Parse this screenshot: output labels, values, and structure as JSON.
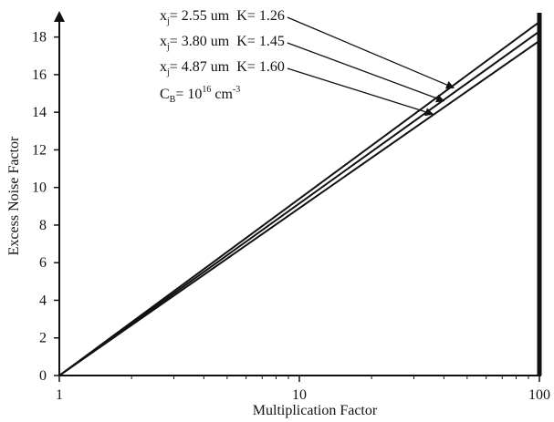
{
  "chart_data": {
    "type": "line",
    "xlabel": "Multiplication Factor",
    "ylabel": "Excess Noise Factor",
    "x_scale": "log",
    "xlim": [
      1,
      100
    ],
    "ylim": [
      0,
      19
    ],
    "x_ticks": [
      {
        "value": 1,
        "label": "1"
      },
      {
        "value": 10,
        "label": "10"
      },
      {
        "value": 100,
        "label": "100"
      }
    ],
    "y_ticks": [
      {
        "value": 0,
        "label": "0"
      },
      {
        "value": 2,
        "label": "2"
      },
      {
        "value": 4,
        "label": "4"
      },
      {
        "value": 6,
        "label": "6"
      },
      {
        "value": 8,
        "label": "8"
      },
      {
        "value": 10,
        "label": "10"
      },
      {
        "value": 12,
        "label": "12"
      },
      {
        "value": 14,
        "label": "14"
      },
      {
        "value": 16,
        "label": "16"
      },
      {
        "value": 18,
        "label": "18"
      }
    ],
    "series": [
      {
        "x": [
          1,
          100
        ],
        "y": [
          0,
          18.8
        ]
      },
      {
        "x": [
          1,
          100
        ],
        "y": [
          0,
          18.3
        ]
      },
      {
        "x": [
          1,
          100
        ],
        "y": [
          0,
          17.8
        ]
      }
    ],
    "grid": false,
    "annotations": [
      {
        "x_prefix": "x",
        "x_sub": "j",
        "x_rest": "= 2.55 um",
        "k": "K= 1.26",
        "arrow_to": {
          "x": 44,
          "y": 15.3
        }
      },
      {
        "x_prefix": "x",
        "x_sub": "j",
        "x_rest": "= 3.80 um",
        "k": "K= 1.45",
        "arrow_to": {
          "x": 40,
          "y": 14.6
        }
      },
      {
        "x_prefix": "x",
        "x_sub": "j",
        "x_rest": "= 4.87 um",
        "k": "K= 1.60",
        "arrow_to": {
          "x": 36,
          "y": 13.9
        }
      }
    ],
    "cb_note": {
      "c": "C",
      "c_sub": "B",
      "eq": "= 10",
      "exp": "16",
      "unit": " cm",
      "unit_exp": "-3"
    }
  }
}
